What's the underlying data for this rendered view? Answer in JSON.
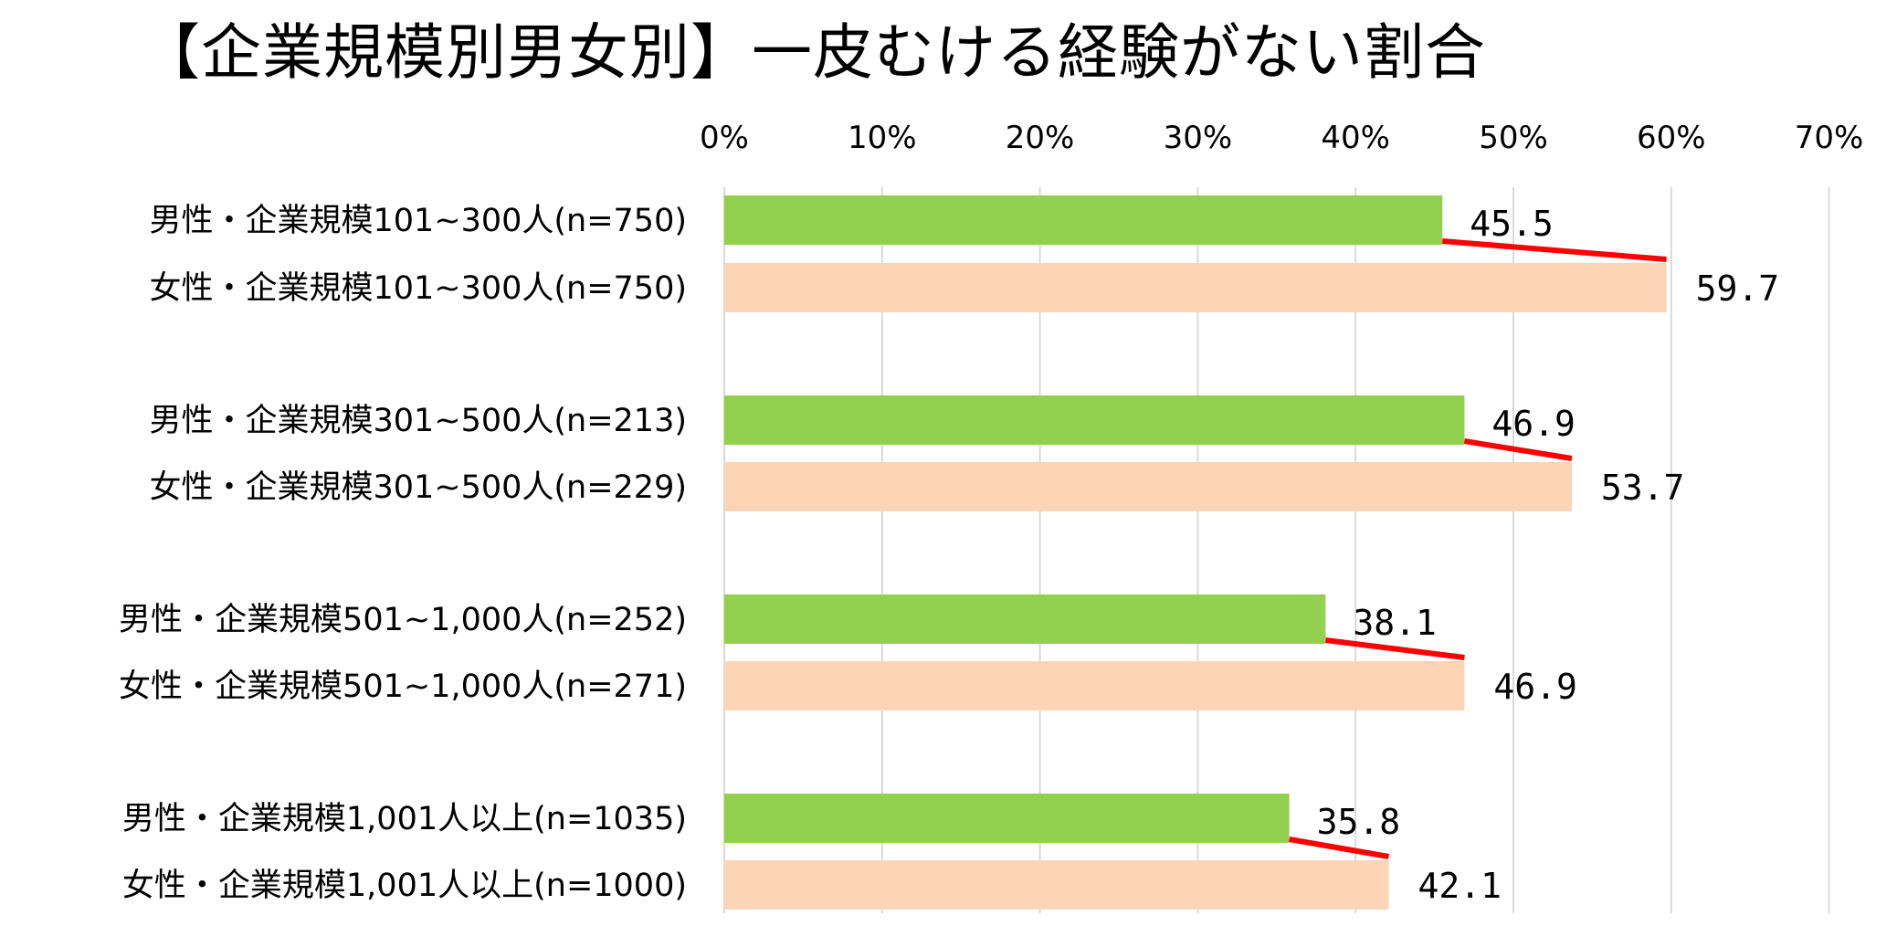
{
  "chart_data": {
    "type": "bar",
    "orientation": "horizontal",
    "title": "【企業規模別男女別】一皮むける経験がない割合",
    "xlabel": "",
    "ylabel": "",
    "xlim": [
      0,
      70
    ],
    "x_ticks": [
      "0%",
      "10%",
      "20%",
      "30%",
      "40%",
      "50%",
      "60%",
      "70%"
    ],
    "grid": true,
    "categories": [
      "男性・企業規模101~300人(n=750)",
      "女性・企業規模101~300人(n=750)",
      "男性・企業規模301~500人(n=213)",
      "女性・企業規模301~500人(n=229)",
      "男性・企業規模501~1,000人(n=252)",
      "女性・企業規模501~1,000人(n=271)",
      "男性・企業規模1,001人以上(n=1035)",
      "女性・企業規模1,001人以上(n=1000)"
    ],
    "values": [
      45.5,
      59.7,
      46.9,
      53.7,
      38.1,
      46.9,
      35.8,
      42.1
    ],
    "value_labels": [
      "45.5",
      "59.7",
      "46.9",
      "53.7",
      "38.1",
      "46.9",
      "35.8",
      "42.1"
    ],
    "bar_colors": [
      "#92d050",
      "#fbd5b5",
      "#92d050",
      "#fbd5b5",
      "#92d050",
      "#fbd5b5",
      "#92d050",
      "#fbd5b5"
    ],
    "connector_color": "#ff0000",
    "connectors": [
      [
        0,
        1
      ],
      [
        2,
        3
      ],
      [
        4,
        5
      ],
      [
        6,
        7
      ]
    ]
  }
}
